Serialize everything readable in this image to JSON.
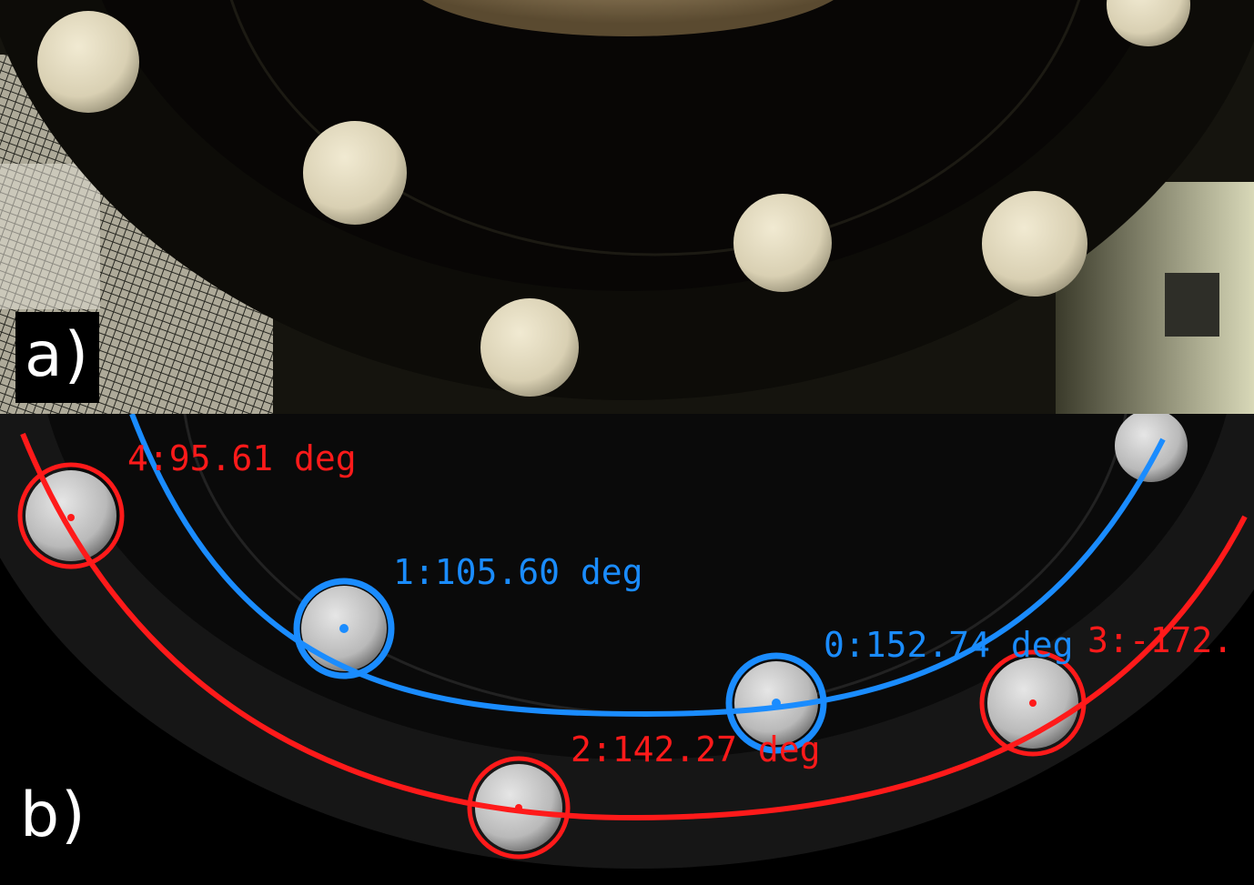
{
  "panels": {
    "a": {
      "label": "a)"
    },
    "b": {
      "label": "b)"
    }
  },
  "detections": [
    {
      "id": "4",
      "label": "4:95.61 deg",
      "ring": "outer",
      "color": "#ff1a1a"
    },
    {
      "id": "1",
      "label": "1:105.60 deg",
      "ring": "inner",
      "color": "#1a8cff"
    },
    {
      "id": "0",
      "label": "0:152.74 deg",
      "ring": "inner",
      "color": "#1a8cff"
    },
    {
      "id": "3",
      "label": "3:-172.",
      "ring": "outer",
      "color": "#ff1a1a"
    },
    {
      "id": "2",
      "label": "2:142.27 deg",
      "ring": "outer",
      "color": "#ff1a1a"
    }
  ],
  "colors": {
    "inner_ring": "#1a8cff",
    "outer_ring": "#ff1a1a"
  }
}
